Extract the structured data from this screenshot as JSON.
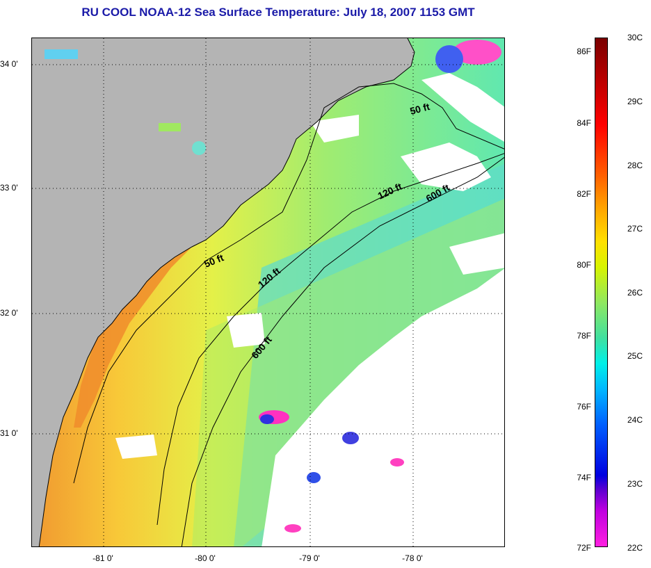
{
  "title": "RU COOL  NOAA-12  Sea Surface Temperature:  July 18, 2007 1153 GMT",
  "map": {
    "latitude_labels": [
      "34 0'",
      "33 0'",
      "32 0'",
      "31 0'"
    ],
    "longitude_labels": [
      "-81 0'",
      "-80 0'",
      "-79 0'",
      "-78 0'"
    ],
    "isobaths": [
      "50 ft",
      "50 ft",
      "120 ft",
      "120 ft",
      "600 ft",
      "600 ft"
    ],
    "colors": {
      "land": "#b4b4b4",
      "cloud_mask": "#ffffff",
      "warm_nearshore": "#f0a030",
      "mid_shelf": "#e8f040",
      "offshore": "#40e0c0",
      "cold_patches": "#ff40c0"
    }
  },
  "colorbar": {
    "fahrenheit_labels": [
      "86F",
      "84F",
      "82F",
      "80F",
      "78F",
      "76F",
      "74F",
      "72F"
    ],
    "celsius_labels": [
      "30C",
      "29C",
      "28C",
      "27C",
      "26C",
      "25C",
      "24C",
      "23C",
      "22C"
    ]
  }
}
